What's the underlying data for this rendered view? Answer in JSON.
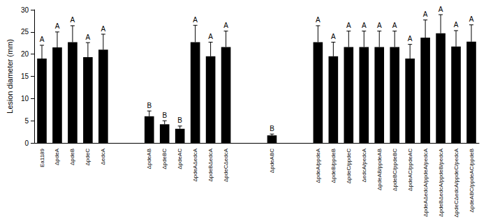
{
  "chart_data": {
    "type": "bar",
    "y_label": "Lesion diameter (mm)",
    "categories": [
      "Ea1189",
      "ΔpdeA",
      "ΔpdeB",
      "ΔpdeC",
      "ΔedcA",
      null,
      null,
      "ΔpdeAB",
      "ΔpdeBC",
      "ΔpdeAC",
      "ΔpdeAΔedcA",
      "ΔpdeBΔedcA",
      "ΔpdeCΔedcA",
      null,
      null,
      "ΔpdeABC",
      null,
      null,
      "ΔpdeA/ppdeA",
      "ΔpdeB/ppdeB",
      "ΔpdeC/ppdeC",
      "ΔedcA/pedcA",
      "ΔpdeAB/ppdeAB",
      "ΔpdeBC/ppdeBC",
      "ΔpdeAC/ppdeAC",
      "ΔpdeAΔedcA/ppdeA/pedcA",
      "ΔpdeBΔedcA/ppdeB/pedcA",
      "ΔpdeCΔedcA/ppdeC/pedcA",
      "ΔpdeABC/ppdeAC/ppdeB"
    ],
    "values": [
      19,
      21.5,
      22.7,
      19.3,
      21,
      null,
      null,
      6,
      4.2,
      3.2,
      22.7,
      19.5,
      21.6,
      null,
      null,
      1.7,
      null,
      null,
      22.7,
      19.5,
      21.6,
      21.6,
      21.6,
      21.6,
      19,
      23.7,
      24.7,
      21.7,
      22.8
    ],
    "errors": [
      3,
      3.5,
      3.7,
      3.3,
      3.5,
      null,
      null,
      1.2,
      0.8,
      0.6,
      3.8,
      3.2,
      3.6,
      null,
      null,
      0.3,
      null,
      null,
      3.7,
      3.2,
      3.6,
      3.6,
      3.6,
      3.6,
      3.2,
      4,
      4.2,
      3.6,
      3.8
    ],
    "letters": [
      "A",
      "A",
      "A",
      "A",
      "A",
      null,
      null,
      "B",
      "B",
      "B",
      "A",
      "A",
      "A",
      null,
      null,
      "B",
      null,
      null,
      "A",
      "A",
      "A",
      "A",
      "A",
      "A",
      "A",
      "A",
      "A",
      "A",
      "A"
    ],
    "color": "#000000",
    "ylim": [
      0,
      30
    ],
    "yticks": [
      0,
      5,
      10,
      15,
      20,
      25,
      30
    ],
    "grid": false
  }
}
